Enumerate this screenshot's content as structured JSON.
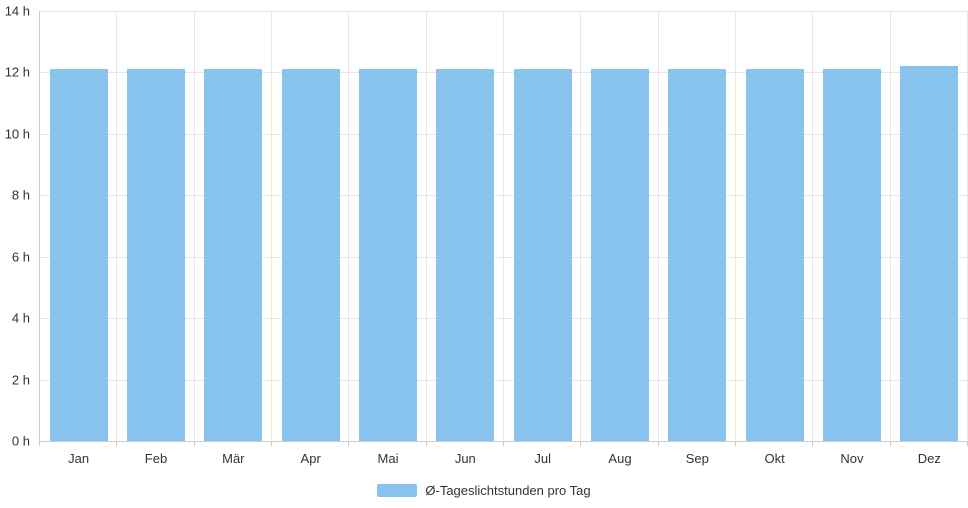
{
  "chart_data": {
    "type": "bar",
    "title": "",
    "xlabel": "",
    "ylabel": "",
    "categories": [
      "Jan",
      "Feb",
      "Mär",
      "Apr",
      "Mai",
      "Jun",
      "Jul",
      "Aug",
      "Sep",
      "Okt",
      "Nov",
      "Dez"
    ],
    "series": [
      {
        "name": "Ø-Tageslichtstunden pro Tag",
        "values": [
          12.1,
          12.1,
          12.1,
          12.1,
          12.1,
          12.1,
          12.1,
          12.1,
          12.1,
          12.1,
          12.1,
          12.2
        ]
      }
    ],
    "ylim": [
      0,
      14
    ],
    "ytick_step": 2,
    "ytick_suffix": " h",
    "grid": true,
    "legend_position": "bottom"
  },
  "colors": {
    "bar": "#87c3ec",
    "grid": "#e6e6e6",
    "axis": "#cccccc",
    "text": "#333333"
  }
}
